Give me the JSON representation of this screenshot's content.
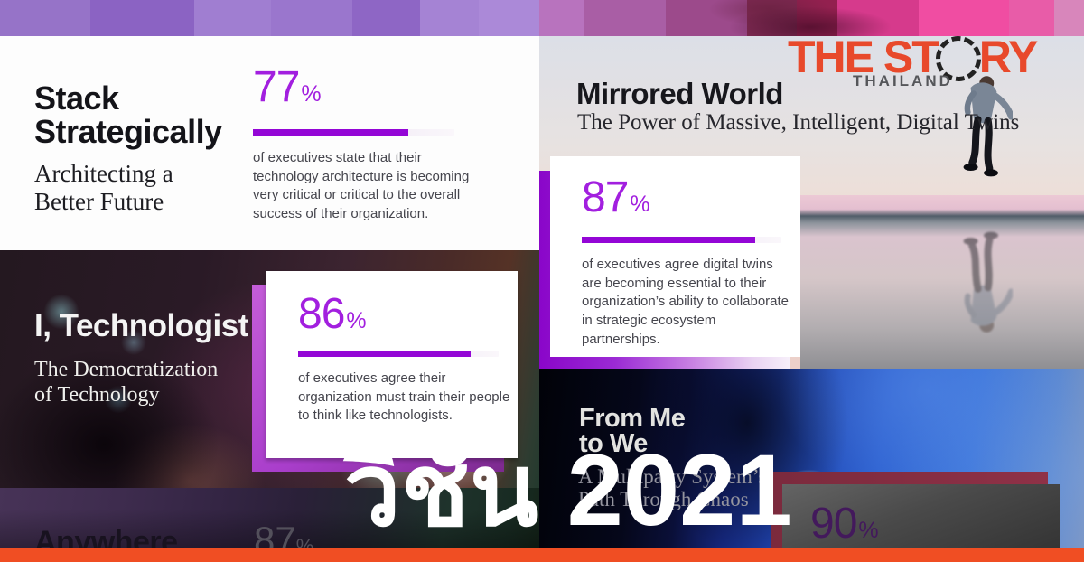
{
  "logo": {
    "text_before_o": "THE ST",
    "text_after_o": "RY",
    "subtitle": "THAILAND",
    "o_icon": "dashed-circle"
  },
  "overlay": {
    "title_thai": "วิชัน 2021"
  },
  "colors": {
    "accent_number_purple": "#a21fdf",
    "accent_bar_purple": "#9406d6",
    "logo_orange": "#e8492b",
    "bottom_bar_orange": "#f04e23",
    "card_shadow_purple": "#9b2ad4",
    "card90_shadow_maroon": "#7b2a3d"
  },
  "trends": {
    "stack": {
      "title": "Stack Strategically",
      "subtitle": "Architecting a Better Future",
      "stat_value": "77",
      "stat_unit": "%",
      "stat_percent": 77,
      "stat_text": "of executives state that their technology architecture is becoming very critical or critical to the overall success of their organization."
    },
    "mirrored": {
      "title": "Mirrored World",
      "subtitle": "The Power of Massive, Intelligent, Digital Twins",
      "stat_value": "87",
      "stat_unit": "%",
      "stat_percent": 87,
      "stat_text": "of executives agree digital twins are becoming essential to their organization’s ability to collaborate in strategic ecosystem partnerships."
    },
    "technologist": {
      "title": "I, Technologist",
      "subtitle": "The Democratization of Technology",
      "stat_value": "86",
      "stat_unit": "%",
      "stat_percent": 86,
      "stat_text": "of executives agree their organization must train their people to think like technologists."
    },
    "from_me_to_we": {
      "title": "From Me to We",
      "subtitle": "A Multiparty System’s Path Through Chaos",
      "stat_value": "90",
      "stat_unit": "%"
    },
    "anywhere": {
      "title": "Anywhere.",
      "stat_value": "87",
      "stat_unit": "%"
    }
  }
}
